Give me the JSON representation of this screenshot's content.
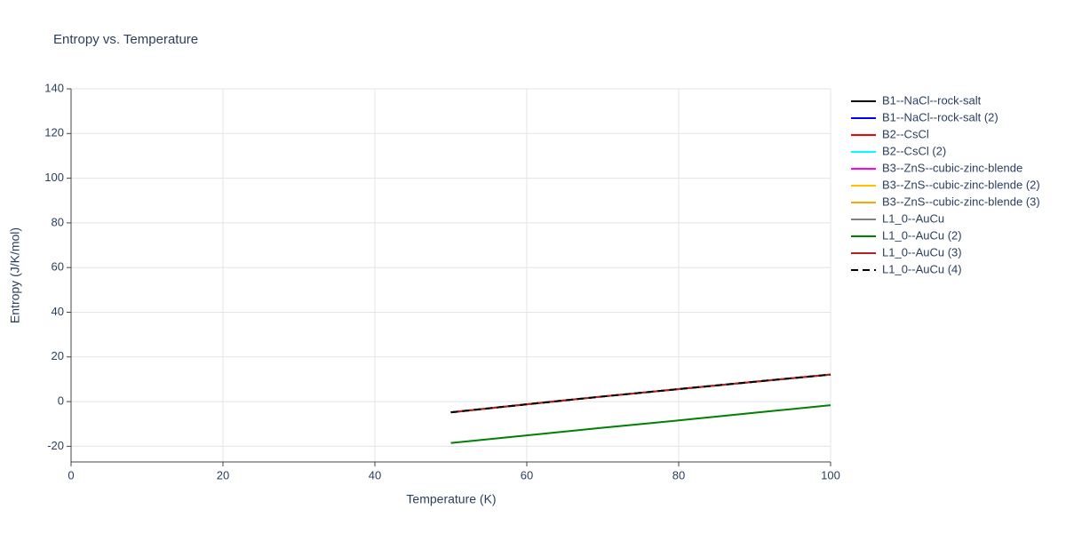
{
  "chart_data": {
    "type": "line",
    "title": "Entropy vs. Temperature",
    "x_label": "Temperature (K)",
    "y_label": "Entropy (J/K/mol)",
    "x": [
      50,
      60,
      70,
      80,
      90,
      100
    ],
    "xlim": [
      0,
      100
    ],
    "xticks": [
      0,
      20,
      40,
      60,
      80,
      100
    ],
    "ylim": [
      -27,
      140
    ],
    "yticks": [
      -20,
      0,
      20,
      40,
      60,
      80,
      100,
      120,
      140
    ],
    "grid": true,
    "legend": "right",
    "series": [
      {
        "name": "B1--NaCl--rock-salt",
        "color": "#000000",
        "dash": "solid",
        "values": [
          -4.8,
          -1.2,
          2.3,
          5.6,
          8.9,
          12.1
        ]
      },
      {
        "name": "B1--NaCl--rock-salt (2)",
        "color": "#0000ff",
        "dash": "solid",
        "values": [
          -4.8,
          -1.2,
          2.3,
          5.6,
          8.9,
          12.1
        ]
      },
      {
        "name": "B2--CsCl",
        "color": "#ff0000",
        "dash": "solid",
        "values": [
          -4.8,
          -1.2,
          2.3,
          5.6,
          8.9,
          12.1
        ]
      },
      {
        "name": "B2--CsCl (2)",
        "color": "#00ffff",
        "dash": "solid",
        "values": [
          -4.8,
          -1.2,
          2.3,
          5.6,
          8.9,
          12.1
        ]
      },
      {
        "name": "B3--ZnS--cubic-zinc-blende",
        "color": "#ff00ff",
        "dash": "solid",
        "values": [
          -4.8,
          -1.2,
          2.3,
          5.6,
          8.9,
          12.1
        ]
      },
      {
        "name": "B3--ZnS--cubic-zinc-blende (2)",
        "color": "#ffc000",
        "dash": "solid",
        "values": [
          -4.8,
          -1.2,
          2.3,
          5.6,
          8.9,
          12.1
        ]
      },
      {
        "name": "B3--ZnS--cubic-zinc-blende (3)",
        "color": "#ffa500",
        "dash": "solid",
        "values": [
          -4.8,
          -1.2,
          2.3,
          5.6,
          8.9,
          12.1
        ]
      },
      {
        "name": "L1_0--AuCu",
        "color": "#808080",
        "dash": "solid",
        "values": [
          -4.8,
          -1.2,
          2.3,
          5.6,
          8.9,
          12.1
        ]
      },
      {
        "name": "L1_0--AuCu (2)",
        "color": "#008000",
        "dash": "solid",
        "values": [
          -18.5,
          -15.1,
          -11.7,
          -8.4,
          -5.0,
          -1.6
        ]
      },
      {
        "name": "L1_0--AuCu (3)",
        "color": "#b22222",
        "dash": "solid",
        "values": [
          -4.8,
          -1.2,
          2.3,
          5.6,
          8.9,
          12.1
        ]
      },
      {
        "name": "L1_0--AuCu (4)",
        "color": "#000000",
        "dash": "dash",
        "values": [
          -4.8,
          -1.2,
          2.3,
          5.6,
          8.9,
          12.1
        ]
      }
    ]
  }
}
